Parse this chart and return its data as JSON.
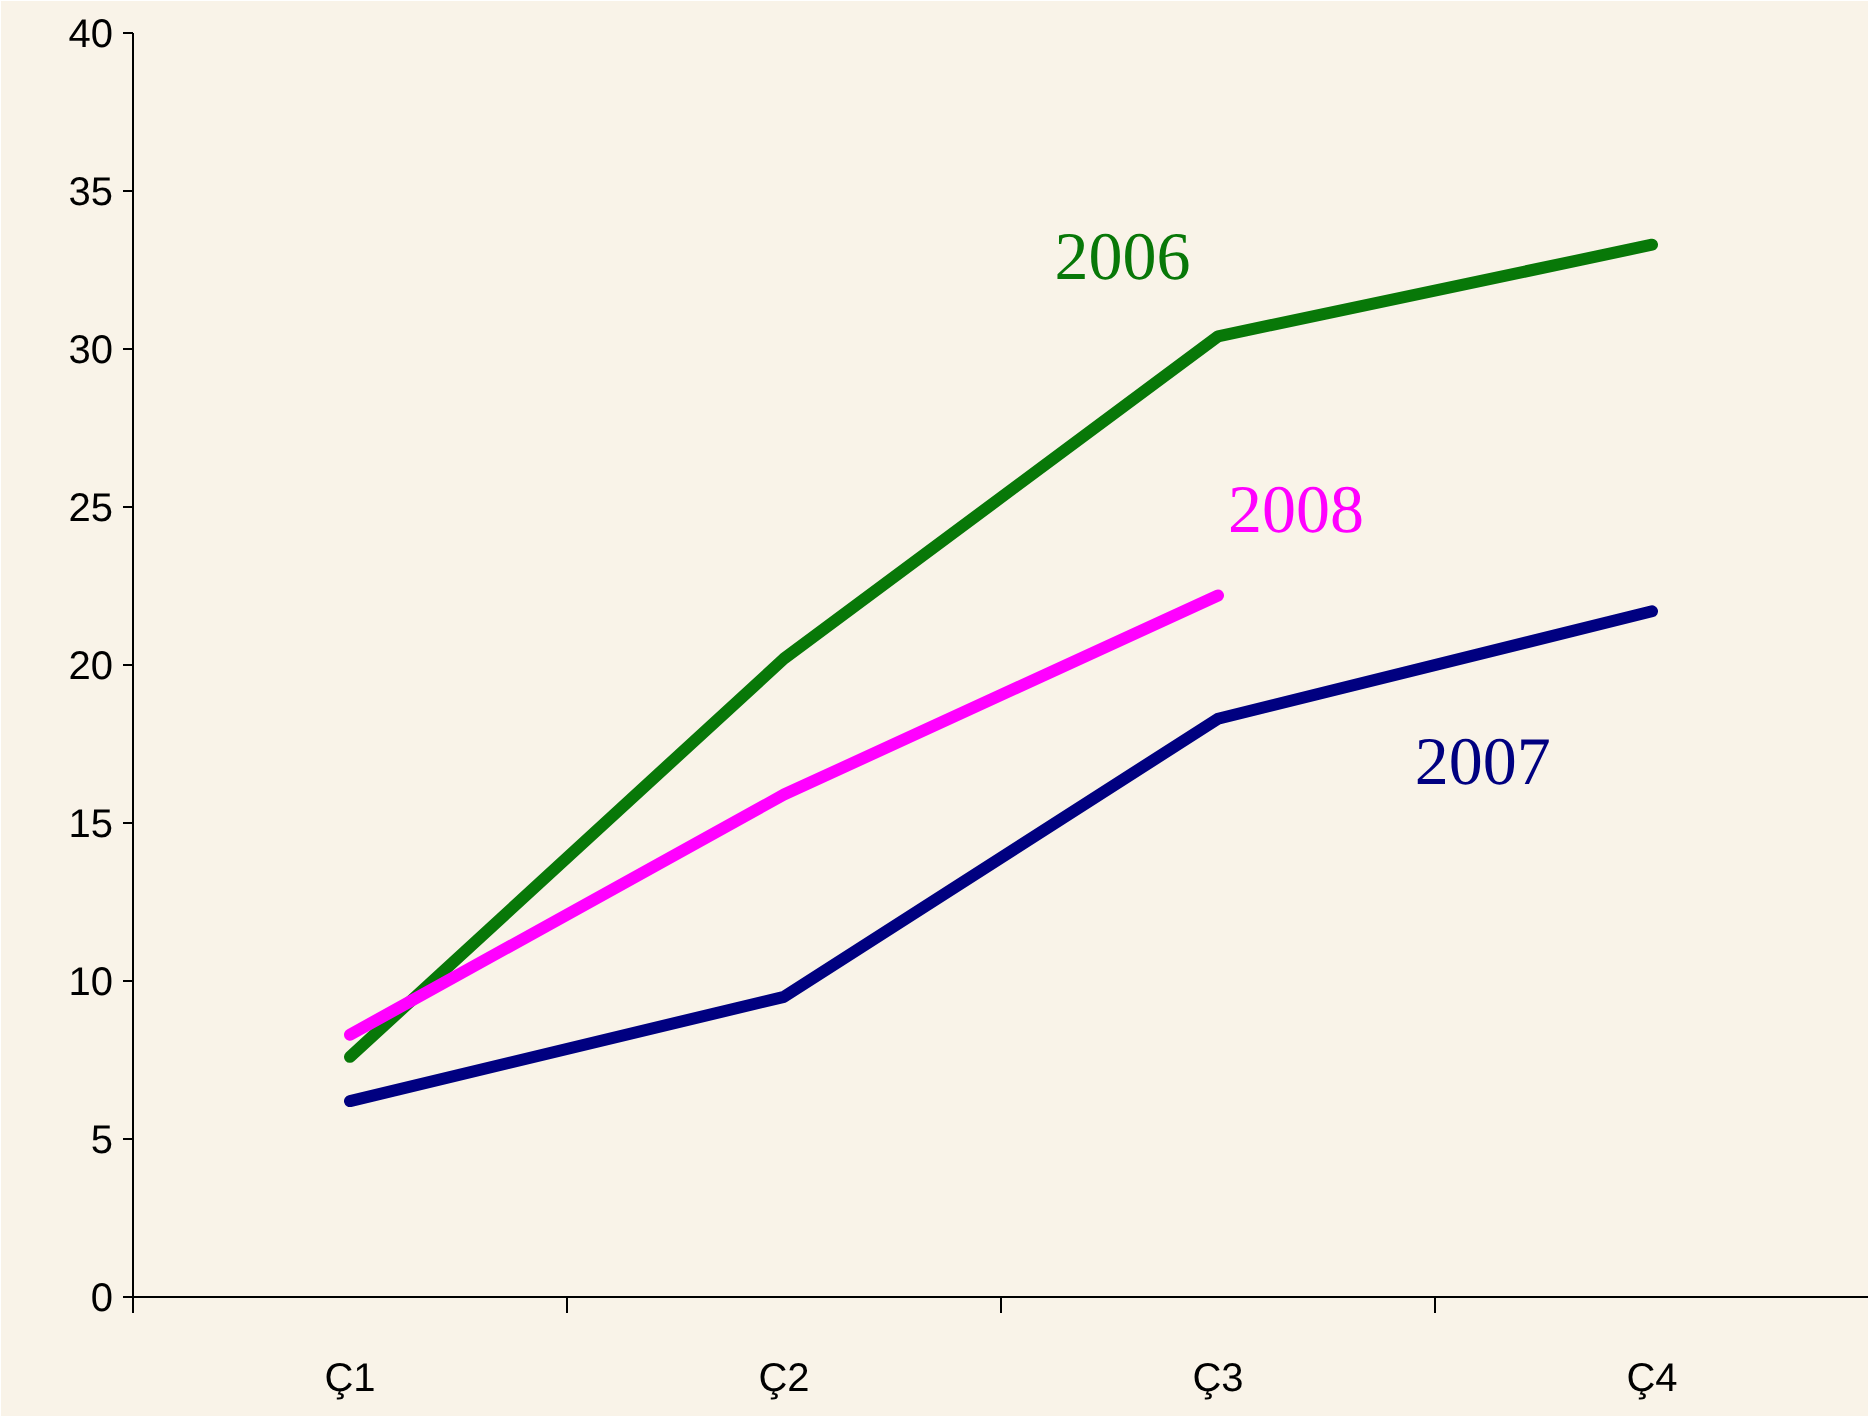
{
  "chart_data": {
    "type": "line",
    "categories": [
      "Ç1",
      "Ç2",
      "Ç3",
      "Ç4"
    ],
    "series": [
      {
        "name": "2006",
        "color": "#087808",
        "values": [
          7.6,
          20.2,
          30.4,
          33.3
        ]
      },
      {
        "name": "2007",
        "color": "#000080",
        "values": [
          6.2,
          9.5,
          18.3,
          21.7
        ]
      },
      {
        "name": "2008",
        "color": "#ff00ff",
        "values": [
          8.3,
          15.9,
          22.2,
          null
        ]
      }
    ],
    "ylim": [
      0,
      40
    ],
    "yticks": [
      0,
      5,
      10,
      15,
      20,
      25,
      30,
      35,
      40
    ],
    "grid": false,
    "marker": "none",
    "line_style": "solid"
  }
}
